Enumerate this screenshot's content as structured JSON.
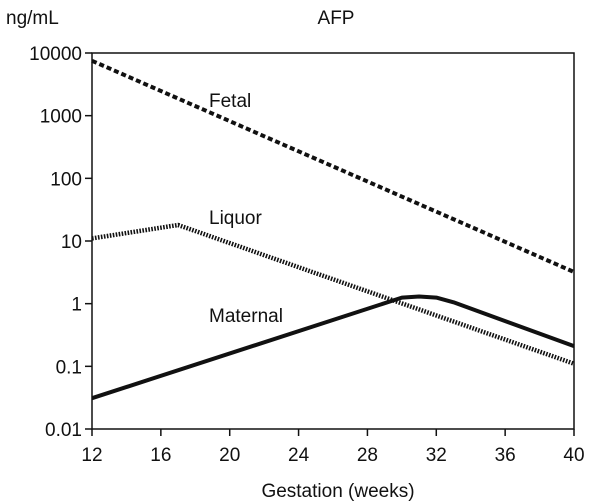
{
  "chart_data": {
    "type": "line",
    "title": "AFP",
    "ylabel": "ng/mL",
    "xlabel": "Gestation (weeks)",
    "x_ticks": [
      "12",
      "16",
      "20",
      "24",
      "28",
      "32",
      "36",
      "40"
    ],
    "y_ticks": [
      {
        "value": 0.01,
        "label": "0.01"
      },
      {
        "value": 0.1,
        "label": "0.1"
      },
      {
        "value": 1,
        "label": "1"
      },
      {
        "value": 10,
        "label": "10"
      },
      {
        "value": 100,
        "label": "100"
      },
      {
        "value": 1000,
        "label": "1000"
      },
      {
        "value": 10000,
        "label": "10000"
      }
    ],
    "xlim": [
      12,
      40
    ],
    "ylim": [
      0.01,
      10000
    ],
    "yscale": "log",
    "grid": false,
    "legend": "none",
    "color": "#111111",
    "series": [
      {
        "name": "Fetal",
        "line_style": "dashed",
        "points": [
          [
            12,
            7500
          ],
          [
            40,
            3.2
          ]
        ]
      },
      {
        "name": "Liquor",
        "line_style": "dotted",
        "points": [
          [
            12,
            11
          ],
          [
            17,
            18
          ],
          [
            40,
            0.11
          ]
        ]
      },
      {
        "name": "Maternal",
        "line_style": "solid",
        "points": [
          [
            12,
            0.031
          ],
          [
            30,
            1.25
          ],
          [
            31,
            1.3
          ],
          [
            32,
            1.25
          ],
          [
            33,
            1.05
          ],
          [
            40,
            0.21
          ]
        ]
      }
    ]
  }
}
